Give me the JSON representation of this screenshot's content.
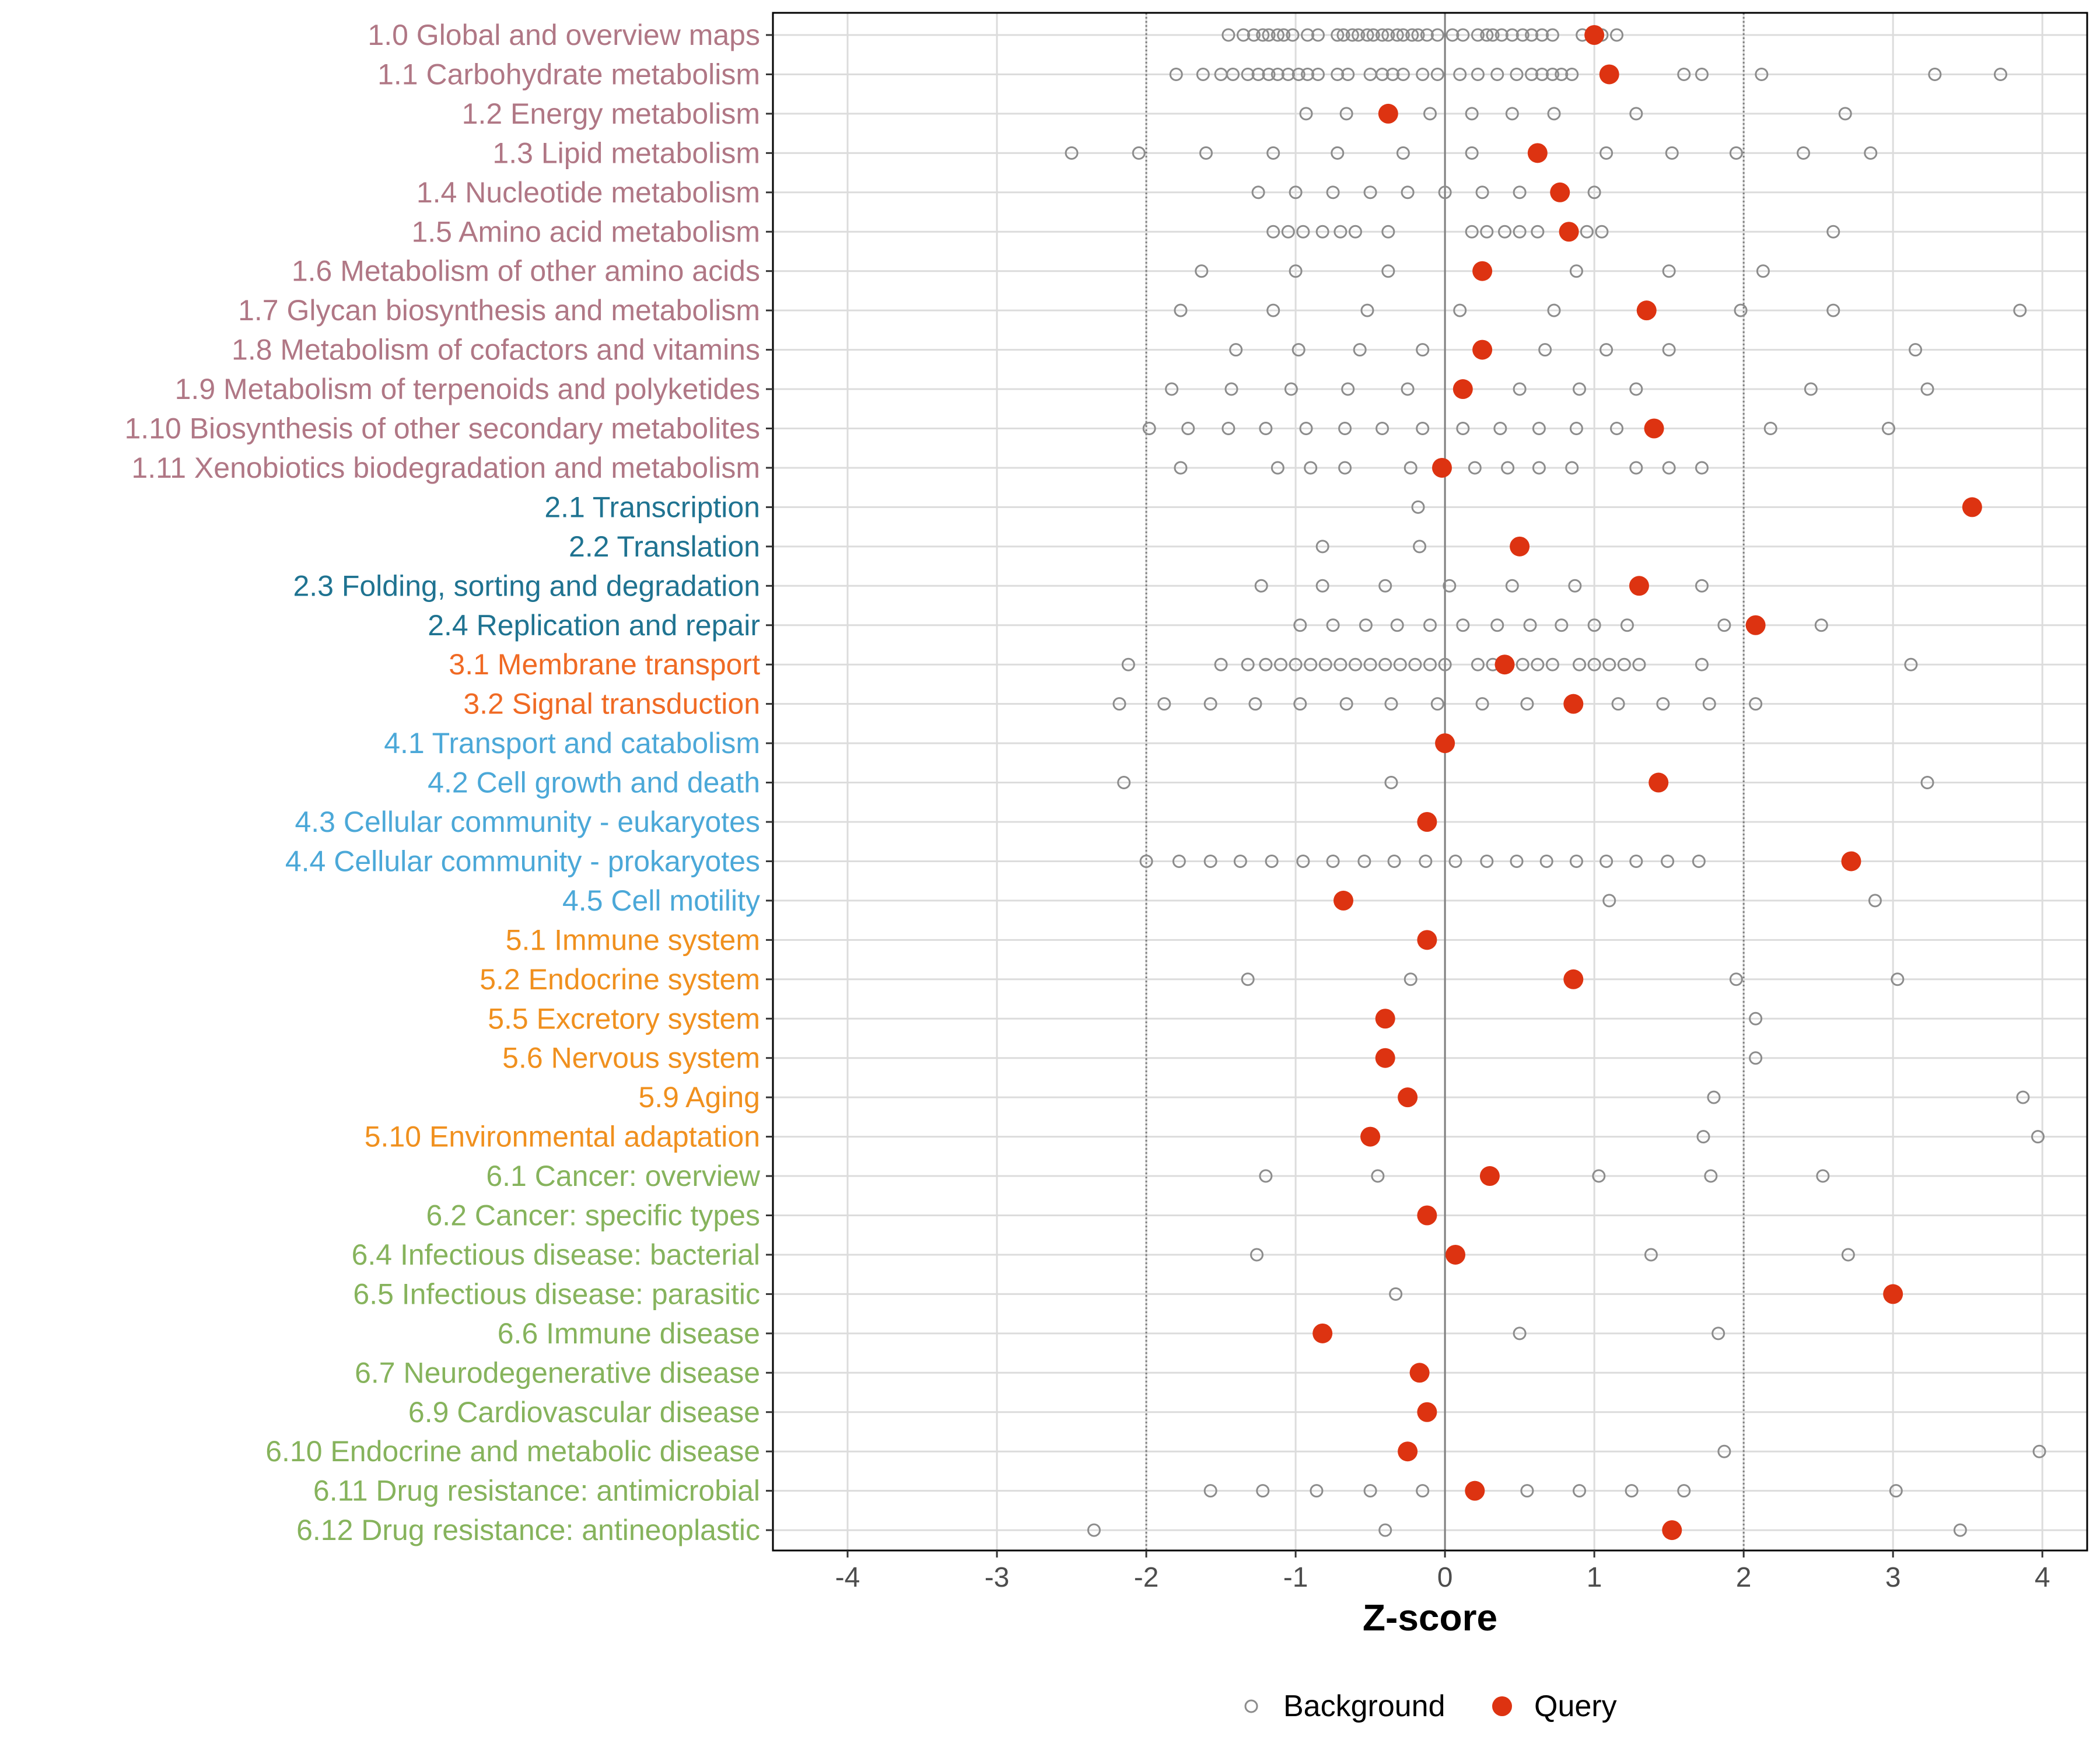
{
  "chart_data": {
    "type": "scatter",
    "xlabel": "Z-score",
    "ylabel": "",
    "xlim": [
      -4.5,
      4.3
    ],
    "xticks": [
      -4,
      -3,
      -2,
      -1,
      0,
      1,
      2,
      3,
      4
    ],
    "reference_lines": {
      "solid": [
        0
      ],
      "dotted": [
        -2,
        2
      ]
    },
    "legend": {
      "position": "bottom",
      "entries": [
        {
          "name": "Background",
          "marker": "open-circle",
          "color": "#888888"
        },
        {
          "name": "Query",
          "marker": "filled-circle",
          "color": "#dd3311"
        }
      ]
    },
    "group_colors": {
      "1": "#b07785",
      "2": "#1f7391",
      "3": "#f06a24",
      "4": "#4ba8d8",
      "5": "#f0901e",
      "6": "#86b35c"
    },
    "categories": [
      {
        "label": "1.0 Global and overview maps",
        "group": "1",
        "query": 1.0,
        "background": [
          -1.45,
          -1.35,
          -1.28,
          -1.22,
          -1.18,
          -1.12,
          -1.08,
          -1.02,
          -0.92,
          -0.85,
          -0.72,
          -0.68,
          -0.62,
          -0.58,
          -0.52,
          -0.48,
          -0.42,
          -0.38,
          -0.32,
          -0.28,
          -0.22,
          -0.18,
          -0.12,
          -0.05,
          0.05,
          0.12,
          0.22,
          0.28,
          0.32,
          0.38,
          0.45,
          0.52,
          0.58,
          0.65,
          0.72,
          0.92,
          1.05,
          1.15
        ]
      },
      {
        "label": "1.1 Carbohydrate metabolism",
        "group": "1",
        "query": 1.1,
        "background": [
          -1.8,
          -1.62,
          -1.5,
          -1.42,
          -1.32,
          -1.25,
          -1.18,
          -1.12,
          -1.05,
          -0.98,
          -0.92,
          -0.85,
          -0.72,
          -0.65,
          -0.5,
          -0.42,
          -0.35,
          -0.28,
          -0.15,
          -0.05,
          0.1,
          0.22,
          0.35,
          0.48,
          0.58,
          0.65,
          0.72,
          0.78,
          0.85,
          1.6,
          1.72,
          2.12,
          3.28,
          3.72
        ]
      },
      {
        "label": "1.2 Energy metabolism",
        "group": "1",
        "query": -0.38,
        "background": [
          -0.93,
          -0.66,
          -0.1,
          0.18,
          0.45,
          0.73,
          1.28,
          2.68
        ]
      },
      {
        "label": "1.3 Lipid metabolism",
        "group": "1",
        "query": 0.62,
        "background": [
          -2.5,
          -2.05,
          -1.6,
          -1.15,
          -0.72,
          -0.28,
          0.18,
          1.08,
          1.52,
          1.95,
          2.4,
          2.85
        ]
      },
      {
        "label": "1.4 Nucleotide metabolism",
        "group": "1",
        "query": 0.77,
        "background": [
          -1.25,
          -1.0,
          -0.75,
          -0.5,
          -0.25,
          0.0,
          0.25,
          0.5,
          1.0
        ]
      },
      {
        "label": "1.5 Amino acid metabolism",
        "group": "1",
        "query": 0.83,
        "background": [
          -1.15,
          -1.05,
          -0.95,
          -0.82,
          -0.7,
          -0.6,
          -0.38,
          0.18,
          0.28,
          0.4,
          0.5,
          0.62,
          0.95,
          1.05,
          2.6
        ]
      },
      {
        "label": "1.6 Metabolism of other amino acids",
        "group": "1",
        "query": 0.25,
        "background": [
          -1.63,
          -1.0,
          -0.38,
          0.88,
          1.5,
          2.13
        ]
      },
      {
        "label": "1.7 Glycan biosynthesis and metabolism",
        "group": "1",
        "query": 1.35,
        "background": [
          -1.77,
          -1.15,
          -0.52,
          0.1,
          0.73,
          1.98,
          2.6,
          3.85
        ]
      },
      {
        "label": "1.8 Metabolism of cofactors and vitamins",
        "group": "1",
        "query": 0.25,
        "background": [
          -1.4,
          -0.98,
          -0.57,
          -0.15,
          0.67,
          1.08,
          1.5,
          3.15
        ]
      },
      {
        "label": "1.9 Metabolism of terpenoids and polyketides",
        "group": "1",
        "query": 0.12,
        "background": [
          -1.83,
          -1.43,
          -1.03,
          -0.65,
          -0.25,
          0.5,
          0.9,
          1.28,
          2.45,
          3.23
        ]
      },
      {
        "label": "1.10 Biosynthesis of other secondary metabolites",
        "group": "1",
        "query": 1.4,
        "background": [
          -1.98,
          -1.72,
          -1.45,
          -1.2,
          -0.93,
          -0.67,
          -0.42,
          -0.15,
          0.12,
          0.37,
          0.63,
          0.88,
          1.15,
          2.18,
          2.97
        ]
      },
      {
        "label": "1.11 Xenobiotics biodegradation and metabolism",
        "group": "1",
        "query": -0.02,
        "background": [
          -1.77,
          -1.12,
          -0.9,
          -0.67,
          -0.23,
          0.2,
          0.42,
          0.63,
          0.85,
          1.28,
          1.5,
          1.72
        ]
      },
      {
        "label": "2.1 Transcription",
        "group": "2",
        "query": 3.53,
        "background": [
          -0.18
        ]
      },
      {
        "label": "2.2 Translation",
        "group": "2",
        "query": 0.5,
        "background": [
          -0.82,
          -0.17
        ]
      },
      {
        "label": "2.3 Folding, sorting and degradation",
        "group": "2",
        "query": 1.3,
        "background": [
          -1.23,
          -0.82,
          -0.4,
          0.03,
          0.45,
          0.87,
          1.72
        ]
      },
      {
        "label": "2.4 Replication and repair",
        "group": "2",
        "query": 2.08,
        "background": [
          -0.97,
          -0.75,
          -0.53,
          -0.32,
          -0.1,
          0.12,
          0.35,
          0.57,
          0.78,
          1.0,
          1.22,
          1.87,
          2.52
        ]
      },
      {
        "label": "3.1 Membrane transport",
        "group": "3",
        "query": 0.4,
        "background": [
          -2.12,
          -1.5,
          -1.32,
          -1.2,
          -1.1,
          -1.0,
          -0.9,
          -0.8,
          -0.7,
          -0.6,
          -0.5,
          -0.4,
          -0.3,
          -0.2,
          -0.1,
          0.0,
          0.22,
          0.32,
          0.52,
          0.62,
          0.72,
          0.9,
          1.0,
          1.1,
          1.2,
          1.3,
          1.72,
          3.12
        ]
      },
      {
        "label": "3.2 Signal transduction",
        "group": "3",
        "query": 0.86,
        "background": [
          -2.18,
          -1.88,
          -1.57,
          -1.27,
          -0.97,
          -0.66,
          -0.36,
          -0.05,
          0.25,
          0.55,
          1.16,
          1.46,
          1.77,
          2.08
        ]
      },
      {
        "label": "4.1 Transport and catabolism",
        "group": "4",
        "query": 0.0,
        "background": []
      },
      {
        "label": "4.2 Cell growth and death",
        "group": "4",
        "query": 1.43,
        "background": [
          -2.15,
          -0.36,
          3.23
        ]
      },
      {
        "label": "4.3 Cellular community - eukaryotes",
        "group": "4",
        "query": -0.12,
        "background": []
      },
      {
        "label": "4.4 Cellular community - prokaryotes",
        "group": "4",
        "query": 2.72,
        "background": [
          -2.0,
          -1.78,
          -1.57,
          -1.37,
          -1.16,
          -0.95,
          -0.75,
          -0.54,
          -0.34,
          -0.13,
          0.07,
          0.28,
          0.48,
          0.68,
          0.88,
          1.08,
          1.28,
          1.49,
          1.7
        ]
      },
      {
        "label": "4.5 Cell motility",
        "group": "4",
        "query": -0.68,
        "background": [
          1.1,
          2.88
        ]
      },
      {
        "label": "5.1 Immune system",
        "group": "5",
        "query": -0.12,
        "background": []
      },
      {
        "label": "5.2 Endocrine system",
        "group": "5",
        "query": 0.86,
        "background": [
          -1.32,
          -0.23,
          1.95,
          3.03
        ]
      },
      {
        "label": "5.5 Excretory system",
        "group": "5",
        "query": -0.4,
        "background": [
          2.08
        ]
      },
      {
        "label": "5.6 Nervous system",
        "group": "5",
        "query": -0.4,
        "background": [
          2.08
        ]
      },
      {
        "label": "5.9 Aging",
        "group": "5",
        "query": -0.25,
        "background": [
          1.8,
          3.87
        ]
      },
      {
        "label": "5.10 Environmental adaptation",
        "group": "5",
        "query": -0.5,
        "background": [
          1.73,
          3.97
        ]
      },
      {
        "label": "6.1 Cancer: overview",
        "group": "6",
        "query": 0.3,
        "background": [
          -1.2,
          -0.45,
          1.03,
          1.78,
          2.53
        ]
      },
      {
        "label": "6.2 Cancer: specific types",
        "group": "6",
        "query": -0.12,
        "background": []
      },
      {
        "label": "6.4 Infectious disease: bacterial",
        "group": "6",
        "query": 0.07,
        "background": [
          -1.26,
          1.38,
          2.7
        ]
      },
      {
        "label": "6.5 Infectious disease: parasitic",
        "group": "6",
        "query": 3.0,
        "background": [
          -0.33
        ]
      },
      {
        "label": "6.6 Immune disease",
        "group": "6",
        "query": -0.82,
        "background": [
          0.5,
          1.83
        ]
      },
      {
        "label": "6.7 Neurodegenerative disease",
        "group": "6",
        "query": -0.17,
        "background": []
      },
      {
        "label": "6.9 Cardiovascular disease",
        "group": "6",
        "query": -0.12,
        "background": []
      },
      {
        "label": "6.10 Endocrine and metabolic disease",
        "group": "6",
        "query": -0.25,
        "background": [
          1.87,
          3.98
        ]
      },
      {
        "label": "6.11 Drug resistance: antimicrobial",
        "group": "6",
        "query": 0.2,
        "background": [
          -1.57,
          -1.22,
          -0.86,
          -0.5,
          -0.15,
          0.55,
          0.9,
          1.25,
          1.6,
          3.02
        ]
      },
      {
        "label": "6.12 Drug resistance: antineoplastic",
        "group": "6",
        "query": 1.52,
        "background": [
          -2.35,
          -0.4,
          3.45
        ]
      }
    ]
  }
}
